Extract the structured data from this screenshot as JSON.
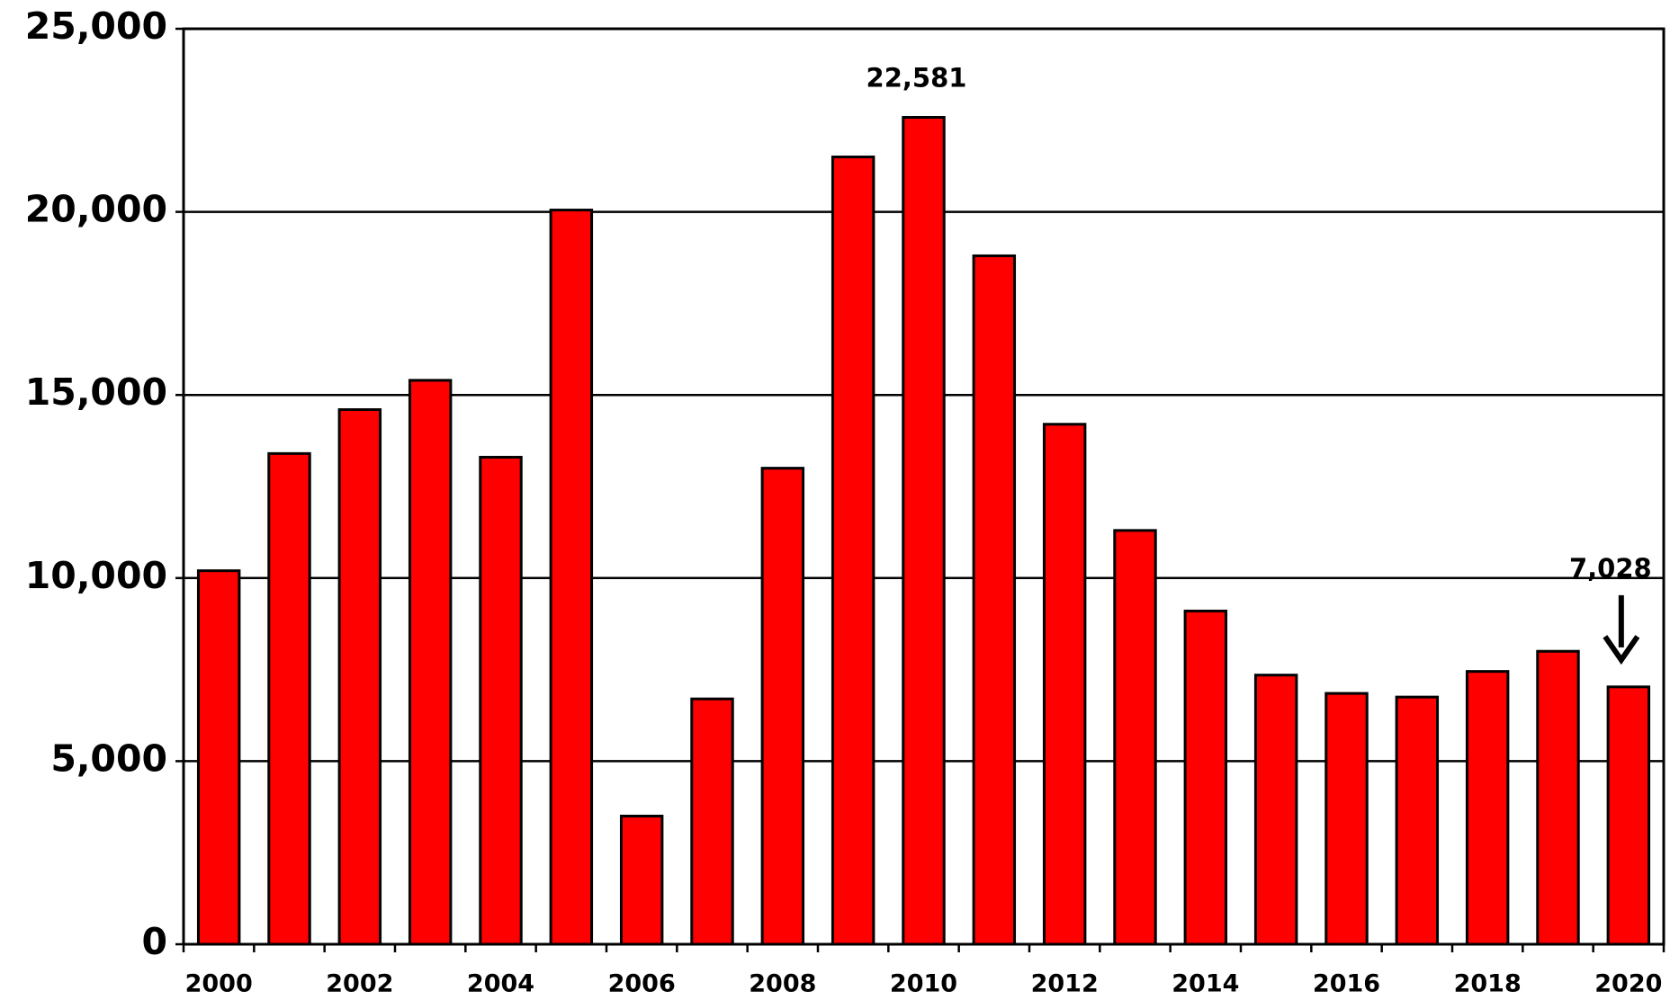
{
  "chart_data": {
    "type": "bar",
    "categories": [
      "2000",
      null,
      "2002",
      null,
      "2004",
      null,
      "2006",
      null,
      "2008",
      null,
      "2010",
      null,
      "2012",
      null,
      "2014",
      null,
      "2016",
      null,
      "2018",
      null,
      "2020"
    ],
    "values": [
      10200,
      13400,
      14600,
      15400,
      13300,
      20050,
      3500,
      6700,
      13000,
      21500,
      22581,
      18800,
      14200,
      11300,
      9100,
      7350,
      6850,
      6750,
      7450,
      8000,
      7028
    ],
    "value_labels": [
      null,
      null,
      null,
      null,
      null,
      null,
      null,
      null,
      null,
      null,
      "22,581",
      null,
      null,
      null,
      null,
      null,
      null,
      null,
      null,
      null,
      "7,028"
    ],
    "color": "#ff0000",
    "ylim": [
      0,
      25000
    ],
    "yticks": [
      0,
      {
        "value": 5000,
        "label": "5,000"
      },
      {
        "value": 10000,
        "label": "10,000"
      },
      {
        "value": 15000,
        "label": "15,000"
      },
      {
        "value": 20000,
        "label": "20,000"
      },
      {
        "value": 25000,
        "label": "25,000"
      }
    ],
    "grid": true
  }
}
